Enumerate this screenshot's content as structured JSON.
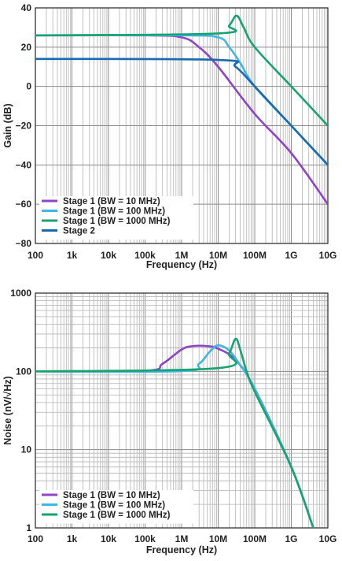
{
  "chart_data": [
    {
      "type": "line",
      "x_scale": "log",
      "xlabel": "Frequency (Hz)",
      "ylabel": "Gain (dB)",
      "xlim": [
        100,
        10000000000
      ],
      "ylim": [
        -80,
        40
      ],
      "x_tick_labels": [
        "100",
        "1k",
        "10k",
        "100k",
        "1M",
        "10M",
        "100M",
        "1G",
        "10G"
      ],
      "y_tick_labels": [
        "40",
        "20",
        "0",
        "−20",
        "−40",
        "−60",
        "−80"
      ],
      "y_ticks": [
        40,
        20,
        0,
        -20,
        -40,
        -60,
        -80
      ],
      "grid": true,
      "legend_position": "bottom-left",
      "series": [
        {
          "name": "Stage 1 (BW = 10 MHz)",
          "color": "#8e44c4",
          "x": [
            100,
            100000,
            1000000,
            3000000,
            10000000,
            100000000,
            1000000000,
            10000000000
          ],
          "values": [
            26,
            26,
            25,
            20,
            10,
            -14,
            -34,
            -60
          ]
        },
        {
          "name": "Stage 1 (BW = 100 MHz)",
          "color": "#3eb5e6",
          "x": [
            100,
            1000000,
            10000000,
            20000000,
            40000000,
            100000000,
            1000000000,
            10000000000
          ],
          "values": [
            26,
            26,
            25,
            20,
            12,
            0,
            -20,
            -40
          ]
        },
        {
          "name": "Stage 1 (BW = 1000 MHz)",
          "color": "#17a370",
          "x": [
            100,
            10000000,
            20000000,
            32000000,
            50000000,
            100000000,
            1000000000,
            10000000000
          ],
          "values": [
            26,
            27,
            31,
            36,
            30,
            20,
            0,
            -20
          ]
        },
        {
          "name": "Stage 2",
          "color": "#1769b0",
          "x": [
            100,
            10000000,
            30000000,
            100000000,
            1000000000,
            10000000000
          ],
          "values": [
            14,
            13.5,
            10,
            0,
            -20,
            -40
          ]
        }
      ]
    },
    {
      "type": "line",
      "x_scale": "log",
      "y_scale": "log",
      "xlabel": "Frequency (Hz)",
      "ylabel": "Noise (nV/√Hz)",
      "xlim": [
        100,
        10000000000
      ],
      "ylim": [
        1,
        1000
      ],
      "x_tick_labels": [
        "100",
        "1k",
        "10k",
        "100k",
        "1M",
        "10M",
        "100M",
        "1G",
        "10G"
      ],
      "y_tick_labels": [
        "1000",
        "100",
        "10",
        "1"
      ],
      "y_ticks": [
        1000,
        100,
        10,
        1
      ],
      "grid": true,
      "legend_position": "bottom-left",
      "series": [
        {
          "name": "Stage 1 (BW = 10 MHz)",
          "color": "#8e44c4",
          "x": [
            100,
            100000,
            300000,
            1000000,
            2000000,
            5000000,
            10000000,
            30000000,
            100000000,
            1000000000,
            4000000000
          ],
          "values": [
            100,
            102,
            125,
            190,
            210,
            210,
            195,
            140,
            60,
            6,
            1
          ]
        },
        {
          "name": "Stage 1 (BW = 100 MHz)",
          "color": "#3eb5e6",
          "x": [
            100,
            1000000,
            3000000,
            6000000,
            10000000,
            20000000,
            40000000,
            100000000,
            1000000000,
            4000000000
          ],
          "values": [
            100,
            101,
            125,
            180,
            215,
            185,
            120,
            60,
            6,
            1
          ]
        },
        {
          "name": "Stage 1 (BW = 1000 MHz)",
          "color": "#17a370",
          "x": [
            100,
            10000000,
            20000000,
            30000000,
            40000000,
            60000000,
            100000000,
            1000000000,
            4000000000
          ],
          "values": [
            100,
            110,
            170,
            260,
            190,
            100,
            55,
            6,
            1
          ]
        }
      ]
    }
  ]
}
